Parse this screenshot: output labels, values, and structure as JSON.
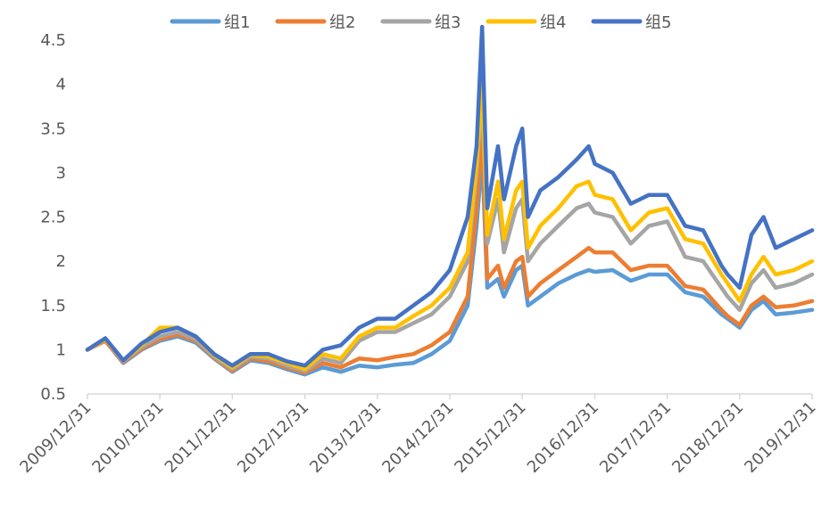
{
  "chart_data": {
    "type": "line",
    "title": "",
    "xlabel": "",
    "ylabel": "",
    "ylim": [
      0.5,
      4.5
    ],
    "yticks": [
      0.5,
      1,
      1.5,
      2,
      2.5,
      3,
      3.5,
      4,
      4.5
    ],
    "ytick_labels": [
      "0.5",
      "1",
      "1.5",
      "2",
      "2.5",
      "3",
      "3.5",
      "4",
      "4.5"
    ],
    "xlim": [
      "2009/12/31",
      "2019/12/31"
    ],
    "xtick_labels": [
      "2009/12/31",
      "2010/12/31",
      "2011/12/31",
      "2012/12/31",
      "2013/12/31",
      "2014/12/31",
      "2015/12/31",
      "2016/12/31",
      "2017/12/31",
      "2018/12/31",
      "2019/12/31"
    ],
    "grid": false,
    "legend_position": "top-center",
    "x": [
      "2009/12/31",
      "2010/03/31",
      "2010/06/30",
      "2010/09/30",
      "2010/12/31",
      "2011/03/31",
      "2011/06/30",
      "2011/09/30",
      "2011/12/31",
      "2012/03/31",
      "2012/06/30",
      "2012/09/30",
      "2012/12/31",
      "2013/03/31",
      "2013/06/30",
      "2013/09/30",
      "2013/12/31",
      "2014/03/31",
      "2014/06/30",
      "2014/09/30",
      "2014/12/31",
      "2015/03/31",
      "2015/05/15",
      "2015/06/12",
      "2015/07/08",
      "2015/08/31",
      "2015/09/30",
      "2015/11/30",
      "2015/12/31",
      "2016/01/29",
      "2016/03/31",
      "2016/06/30",
      "2016/09/30",
      "2016/11/30",
      "2016/12/31",
      "2017/03/31",
      "2017/06/30",
      "2017/09/30",
      "2017/12/31",
      "2018/03/31",
      "2018/06/30",
      "2018/09/30",
      "2018/10/31",
      "2018/12/31",
      "2019/02/28",
      "2019/04/30",
      "2019/06/30",
      "2019/09/30",
      "2019/12/31"
    ],
    "series": [
      {
        "name": "组1",
        "color": "#5B9BD5",
        "values": [
          1.0,
          1.1,
          0.85,
          1.0,
          1.1,
          1.15,
          1.08,
          0.9,
          0.75,
          0.88,
          0.85,
          0.78,
          0.72,
          0.8,
          0.75,
          0.82,
          0.8,
          0.83,
          0.85,
          0.95,
          1.1,
          1.5,
          2.4,
          3.2,
          1.7,
          1.8,
          1.6,
          1.9,
          1.95,
          1.5,
          1.6,
          1.75,
          1.85,
          1.9,
          1.88,
          1.9,
          1.78,
          1.85,
          1.85,
          1.65,
          1.6,
          1.4,
          1.35,
          1.25,
          1.45,
          1.55,
          1.4,
          1.42,
          1.45
        ]
      },
      {
        "name": "组2",
        "color": "#ED7D31",
        "values": [
          1.0,
          1.1,
          0.86,
          1.01,
          1.12,
          1.17,
          1.1,
          0.91,
          0.76,
          0.9,
          0.87,
          0.8,
          0.74,
          0.85,
          0.8,
          0.9,
          0.88,
          0.92,
          0.95,
          1.05,
          1.2,
          1.6,
          2.6,
          3.5,
          1.8,
          1.95,
          1.7,
          2.0,
          2.05,
          1.6,
          1.75,
          1.9,
          2.05,
          2.15,
          2.1,
          2.1,
          1.9,
          1.95,
          1.95,
          1.72,
          1.68,
          1.45,
          1.38,
          1.28,
          1.5,
          1.6,
          1.48,
          1.5,
          1.55
        ]
      },
      {
        "name": "组3",
        "color": "#A5A5A5",
        "values": [
          1.0,
          1.12,
          0.87,
          1.03,
          1.15,
          1.2,
          1.12,
          0.92,
          0.78,
          0.92,
          0.9,
          0.82,
          0.76,
          0.9,
          0.85,
          1.1,
          1.2,
          1.2,
          1.3,
          1.4,
          1.6,
          2.0,
          3.0,
          3.9,
          2.2,
          2.7,
          2.1,
          2.6,
          2.7,
          2.0,
          2.2,
          2.4,
          2.6,
          2.65,
          2.55,
          2.5,
          2.2,
          2.4,
          2.45,
          2.05,
          2.0,
          1.7,
          1.6,
          1.45,
          1.75,
          1.9,
          1.7,
          1.75,
          1.85
        ]
      },
      {
        "name": "组4",
        "color": "#FFC000",
        "values": [
          1.0,
          1.12,
          0.88,
          1.05,
          1.25,
          1.25,
          1.15,
          0.94,
          0.8,
          0.94,
          0.92,
          0.85,
          0.78,
          0.95,
          0.9,
          1.15,
          1.25,
          1.25,
          1.38,
          1.5,
          1.7,
          2.1,
          3.1,
          4.0,
          2.3,
          2.9,
          2.25,
          2.8,
          2.9,
          2.15,
          2.4,
          2.6,
          2.85,
          2.9,
          2.75,
          2.7,
          2.35,
          2.55,
          2.6,
          2.25,
          2.2,
          1.85,
          1.75,
          1.55,
          1.85,
          2.05,
          1.85,
          1.9,
          2.0
        ]
      },
      {
        "name": "组5",
        "color": "#4472C4",
        "values": [
          1.0,
          1.13,
          0.88,
          1.07,
          1.2,
          1.25,
          1.15,
          0.95,
          0.82,
          0.95,
          0.95,
          0.87,
          0.82,
          1.0,
          1.05,
          1.25,
          1.35,
          1.35,
          1.5,
          1.65,
          1.9,
          2.5,
          3.3,
          4.65,
          2.6,
          3.3,
          2.7,
          3.3,
          3.5,
          2.5,
          2.8,
          2.95,
          3.15,
          3.3,
          3.1,
          3.0,
          2.65,
          2.75,
          2.75,
          2.4,
          2.35,
          1.95,
          1.85,
          1.7,
          2.3,
          2.5,
          2.15,
          2.25,
          2.35
        ]
      }
    ]
  }
}
